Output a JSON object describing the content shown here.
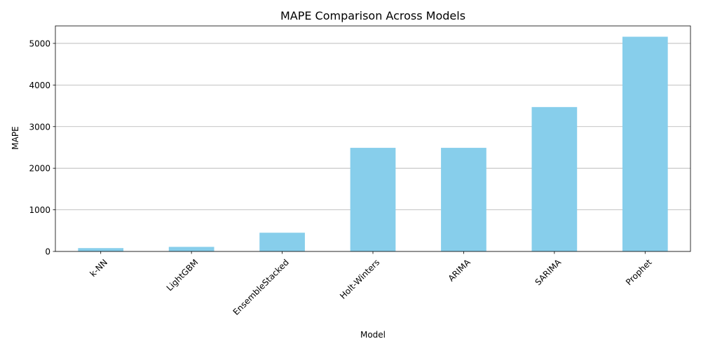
{
  "chart_data": {
    "type": "bar",
    "title": "MAPE Comparison Across Models",
    "xlabel": "Model",
    "ylabel": "MAPE",
    "categories": [
      "k-NN",
      "LightGBM",
      "EnsembleStacked",
      "Holt-Winters",
      "ARIMA",
      "SARIMA",
      "Prophet"
    ],
    "values": [
      80,
      110,
      450,
      2490,
      2490,
      3470,
      5160
    ],
    "ylim": [
      0,
      5420
    ],
    "yticks": [
      0,
      1000,
      2000,
      3000,
      4000,
      5000
    ],
    "grid": "y",
    "bar_color": "#87ceeb",
    "xtick_rotation": 45
  }
}
